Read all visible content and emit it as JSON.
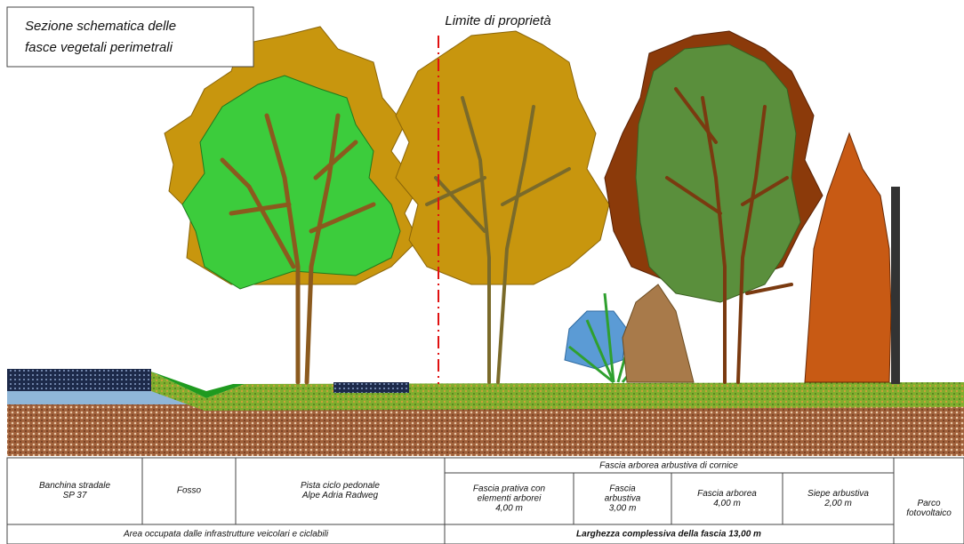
{
  "title": [
    "Sezione schematica delle",
    "fasce vegetali perimetrali"
  ],
  "property_limit": "Limite di proprietà",
  "table": {
    "header_group": "Fascia arborea arbustiva di cornice",
    "cells": [
      [
        "Banchina stradale",
        "SP 37"
      ],
      [
        "Fosso"
      ],
      [
        "Pista ciclo pedonale",
        "Alpe Adria Radweg"
      ],
      [
        "Fascia prativa con",
        "elementi arborei",
        "4,00 m"
      ],
      [
        "Fascia",
        "arbustiva",
        "3,00 m"
      ],
      [
        "Fascia arborea",
        "4,00 m"
      ],
      [
        "Siepe arbustiva",
        "2,00 m"
      ],
      [
        "Parco",
        "fotovoltaico"
      ]
    ],
    "footer": [
      "Area occupata dalle infrastrutture veicolari e ciclabili",
      "Larghezza complessiva della fascia 13,00 m"
    ]
  }
}
